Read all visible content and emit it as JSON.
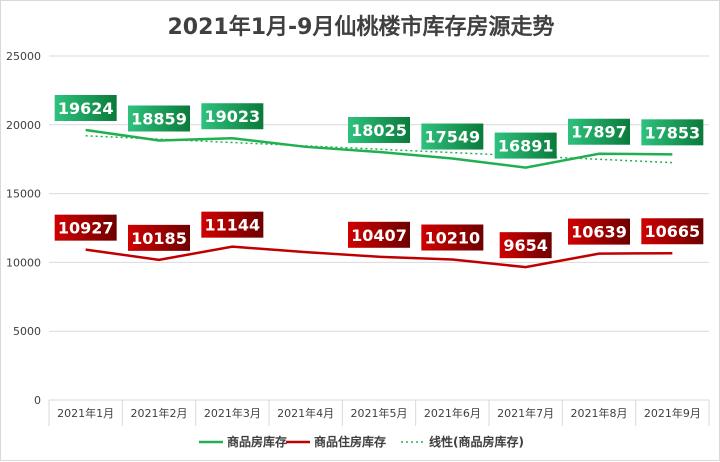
{
  "chart_data": {
    "type": "line",
    "title": "2021年1月-9月仙桃楼市库存房源走势",
    "categories": [
      "2021年1月",
      "2021年2月",
      "2021年3月",
      "2021年4月",
      "2021年5月",
      "2021年6月",
      "2021年7月",
      "2021年8月",
      "2021年9月"
    ],
    "series": [
      {
        "name": "商品房库存",
        "color": "#20b050",
        "values": [
          19624,
          18859,
          19023,
          18400,
          18025,
          17549,
          16891,
          17897,
          17853
        ],
        "labels": [
          "19624",
          "18859",
          "19023",
          "",
          "18025",
          "17549",
          "16891",
          "17897",
          "17853"
        ]
      },
      {
        "name": "商品住房库存",
        "color": "#c00000",
        "values": [
          10927,
          10185,
          11144,
          10750,
          10407,
          10210,
          9654,
          10639,
          10665
        ],
        "labels": [
          "10927",
          "10185",
          "11144",
          "",
          "10407",
          "10210",
          "9654",
          "10639",
          "10665"
        ]
      }
    ],
    "trendline": {
      "name": "线性(商品房库存)",
      "color": "#20b050",
      "style": "dotted",
      "start": 19200,
      "end": 17250
    },
    "yticks": [
      "0",
      "5000",
      "10000",
      "15000",
      "20000",
      "25000"
    ],
    "ylim": [
      0,
      25000
    ],
    "grid": true,
    "legend_position": "bottom"
  }
}
